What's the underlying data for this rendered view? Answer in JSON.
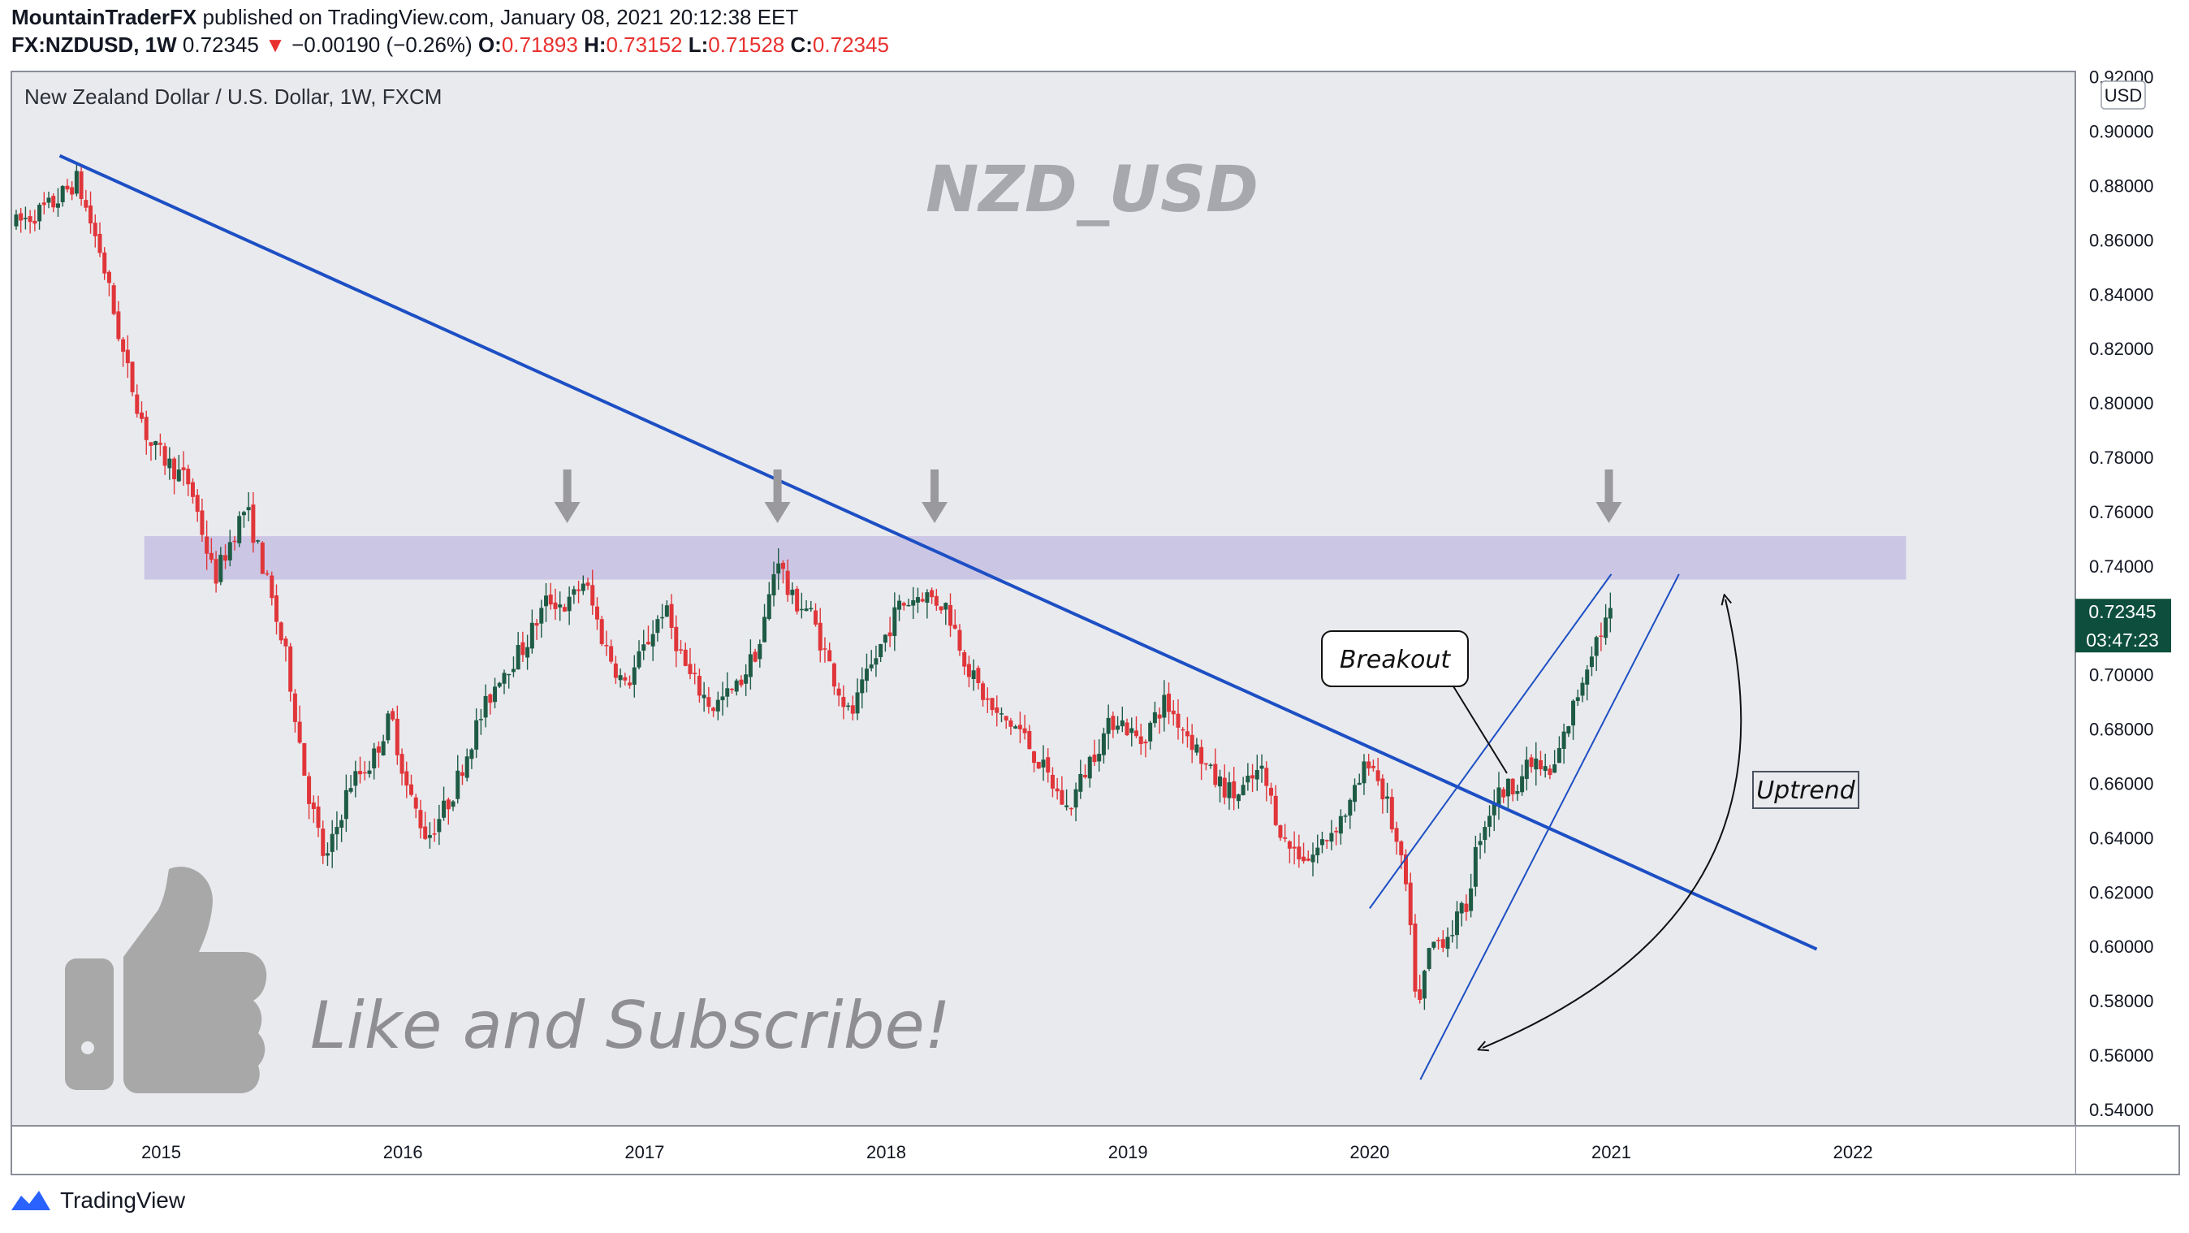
{
  "header": {
    "author": "MountainTraderFX",
    "published_text": "published on TradingView.com, January 08, 2021 20:12:38 EET",
    "symbol": "FX:NZDUSD, 1W",
    "last": "0.72345",
    "change": "−0.00190 (−0.26%)",
    "o_label": "O:",
    "o": "0.71893",
    "h_label": "H:",
    "h": "0.73152",
    "l_label": "L:",
    "l": "0.71528",
    "c_label": "C:",
    "c": "0.72345"
  },
  "pane": {
    "series_title": "New Zealand Dollar / U.S. Dollar, 1W, FXCM",
    "currency_button": "USD",
    "watermark": "NZD_USD",
    "price_badge": "0.72345",
    "countdown_badge": "03:47:23"
  },
  "annotations": {
    "breakout": "Breakout",
    "uptrend": "Uptrend",
    "like_subscribe": "Like and Subscribe!"
  },
  "footer": {
    "brand": "TradingView"
  },
  "colors": {
    "up": "#1e5b45",
    "down": "#e0363a",
    "trendline": "#1d4fc4",
    "zone": "#c9c2e3",
    "background": "#e9eaee",
    "price_badge": "#0d4f3c"
  },
  "icons": [
    "thumbs-up-icon",
    "down-arrow-icon",
    "tradingview-logo-icon"
  ],
  "chart_data": {
    "type": "candlestick",
    "timeframe": "1W",
    "x_ticks": [
      "2015",
      "2016",
      "2017",
      "2018",
      "2019",
      "2020",
      "2021",
      "2022"
    ],
    "y_ticks": [
      "0.92000",
      "0.90000",
      "0.88000",
      "0.86000",
      "0.84000",
      "0.82000",
      "0.80000",
      "0.78000",
      "0.76000",
      "0.74000",
      "0.72000",
      "0.70000",
      "0.68000",
      "0.66000",
      "0.64000",
      "0.62000",
      "0.60000",
      "0.58000",
      "0.56000",
      "0.54000"
    ],
    "ylim": [
      0.534,
      0.922
    ],
    "xlim": [
      2014.38,
      2022.92
    ],
    "series": [
      {
        "name": "NZDUSD close (approx.)",
        "points": [
          [
            2014.4,
            0.866
          ],
          [
            2014.55,
            0.873
          ],
          [
            2014.65,
            0.882
          ],
          [
            2014.75,
            0.855
          ],
          [
            2014.85,
            0.815
          ],
          [
            2014.95,
            0.785
          ],
          [
            2015.05,
            0.776
          ],
          [
            2015.12,
            0.77
          ],
          [
            2015.22,
            0.735
          ],
          [
            2015.3,
            0.752
          ],
          [
            2015.35,
            0.762
          ],
          [
            2015.42,
            0.74
          ],
          [
            2015.52,
            0.705
          ],
          [
            2015.6,
            0.66
          ],
          [
            2015.68,
            0.63
          ],
          [
            2015.78,
            0.66
          ],
          [
            2015.87,
            0.668
          ],
          [
            2015.95,
            0.685
          ],
          [
            2016.02,
            0.657
          ],
          [
            2016.1,
            0.64
          ],
          [
            2016.2,
            0.655
          ],
          [
            2016.3,
            0.68
          ],
          [
            2016.4,
            0.7
          ],
          [
            2016.5,
            0.71
          ],
          [
            2016.6,
            0.728
          ],
          [
            2016.68,
            0.725
          ],
          [
            2016.75,
            0.735
          ],
          [
            2016.83,
            0.712
          ],
          [
            2016.92,
            0.695
          ],
          [
            2017.0,
            0.71
          ],
          [
            2017.08,
            0.725
          ],
          [
            2017.18,
            0.7
          ],
          [
            2017.28,
            0.688
          ],
          [
            2017.38,
            0.695
          ],
          [
            2017.48,
            0.712
          ],
          [
            2017.55,
            0.745
          ],
          [
            2017.6,
            0.728
          ],
          [
            2017.68,
            0.724
          ],
          [
            2017.78,
            0.7
          ],
          [
            2017.85,
            0.684
          ],
          [
            2017.95,
            0.705
          ],
          [
            2018.05,
            0.725
          ],
          [
            2018.15,
            0.73
          ],
          [
            2018.25,
            0.725
          ],
          [
            2018.35,
            0.7
          ],
          [
            2018.45,
            0.685
          ],
          [
            2018.55,
            0.68
          ],
          [
            2018.65,
            0.665
          ],
          [
            2018.75,
            0.65
          ],
          [
            2018.85,
            0.67
          ],
          [
            2018.95,
            0.685
          ],
          [
            2019.05,
            0.675
          ],
          [
            2019.15,
            0.69
          ],
          [
            2019.25,
            0.678
          ],
          [
            2019.35,
            0.662
          ],
          [
            2019.45,
            0.655
          ],
          [
            2019.55,
            0.665
          ],
          [
            2019.65,
            0.638
          ],
          [
            2019.75,
            0.632
          ],
          [
            2019.82,
            0.64
          ],
          [
            2019.92,
            0.652
          ],
          [
            2020.0,
            0.67
          ],
          [
            2020.08,
            0.65
          ],
          [
            2020.15,
            0.622
          ],
          [
            2020.2,
            0.575
          ],
          [
            2020.25,
            0.6
          ],
          [
            2020.33,
            0.605
          ],
          [
            2020.4,
            0.615
          ],
          [
            2020.45,
            0.64
          ],
          [
            2020.52,
            0.655
          ],
          [
            2020.6,
            0.66
          ],
          [
            2020.68,
            0.668
          ],
          [
            2020.75,
            0.662
          ],
          [
            2020.85,
            0.69
          ],
          [
            2020.92,
            0.71
          ],
          [
            2021.0,
            0.723
          ]
        ]
      }
    ],
    "resistance_zone": [
      0.735,
      0.751
    ],
    "descending_trendline": [
      [
        2014.58,
        0.891
      ],
      [
        2021.85,
        0.599
      ]
    ],
    "channel_upper": [
      [
        2020.0,
        0.614
      ],
      [
        2021.0,
        0.737
      ]
    ],
    "channel_lower": [
      [
        2020.21,
        0.551
      ],
      [
        2021.28,
        0.737
      ]
    ],
    "arrow_markers_x": [
      2016.68,
      2017.55,
      2018.2,
      2020.99
    ],
    "grid": false,
    "legend": "top-left"
  }
}
